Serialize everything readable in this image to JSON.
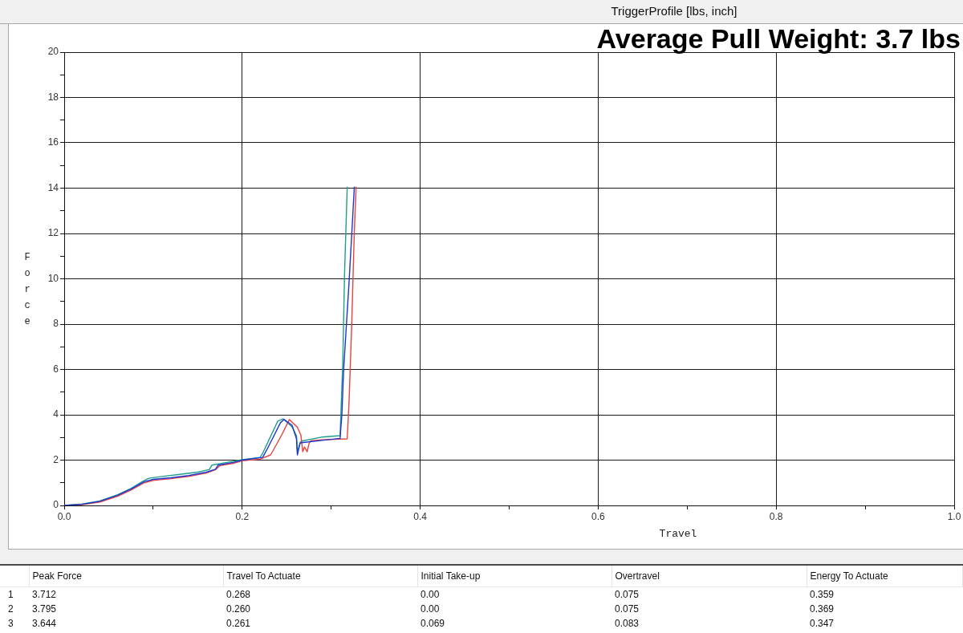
{
  "chart_data": [
    {
      "type": "line",
      "title": "TriggerProfile [lbs, inch]",
      "xlabel": "Travel",
      "ylabel": "Force",
      "annotations": [
        "Average Pull Weight: 3.7 lbs"
      ],
      "xlim": [
        0,
        1
      ],
      "xticks": [
        {
          "value": 0,
          "label": "0.0"
        },
        {
          "value": 0.1,
          "label": null
        },
        0.2,
        {
          "value": 0.3,
          "label": null
        },
        0.4,
        {
          "value": 0.5,
          "label": null
        },
        0.6,
        {
          "value": 0.7,
          "label": null
        },
        0.8,
        {
          "value": 0.9,
          "label": null
        },
        {
          "value": 1,
          "label": "1.0"
        }
      ],
      "ylim": [
        0,
        20
      ],
      "yticks": [
        0,
        {
          "value": 1,
          "label": null
        },
        2,
        {
          "value": 3,
          "label": null
        },
        4,
        {
          "value": 5,
          "label": null
        },
        6,
        {
          "value": 7,
          "label": null
        },
        8,
        {
          "value": 9,
          "label": null
        },
        10,
        {
          "value": 11,
          "label": null
        },
        12,
        {
          "value": 13,
          "label": null
        },
        14,
        {
          "value": 15,
          "label": null
        },
        16,
        {
          "value": 17,
          "label": null
        },
        18,
        {
          "value": 19,
          "label": null
        },
        20
      ],
      "grid": true,
      "series": [
        {
          "color": "#1f35d0",
          "x": [
            0,
            0.02,
            0.04,
            0.06,
            0.075,
            0.09,
            0.1,
            0.12,
            0.14,
            0.16,
            0.17,
            0.173,
            0.19,
            0.2,
            0.223,
            0.228,
            0.243,
            0.247,
            0.256,
            0.261,
            0.262,
            0.265,
            0.292,
            0.31,
            0.312,
            0.314,
            0.317,
            0.32,
            0.323,
            0.326
          ],
          "values": [
            0,
            0.05,
            0.18,
            0.45,
            0.72,
            1.05,
            1.15,
            1.22,
            1.32,
            1.47,
            1.6,
            1.78,
            1.9,
            2.0,
            2.12,
            2.48,
            3.65,
            3.79,
            3.54,
            2.94,
            2.23,
            2.76,
            2.88,
            2.96,
            4.0,
            6.0,
            7.9,
            9.8,
            11.9,
            14.05
          ]
        },
        {
          "color": "#e8423f",
          "x": [
            0,
            0.02,
            0.04,
            0.06,
            0.075,
            0.09,
            0.1,
            0.12,
            0.14,
            0.16,
            0.17,
            0.175,
            0.19,
            0.2,
            0.22,
            0.232,
            0.244,
            0.253,
            0.262,
            0.266,
            0.268,
            0.27,
            0.273,
            0.275,
            0.277,
            0.29,
            0.318,
            0.32,
            0.323,
            0.326,
            0.328
          ],
          "values": [
            0,
            0.03,
            0.15,
            0.4,
            0.68,
            1.0,
            1.1,
            1.18,
            1.28,
            1.43,
            1.58,
            1.76,
            1.86,
            1.97,
            2.04,
            2.23,
            3.08,
            3.79,
            3.45,
            3.1,
            2.37,
            2.58,
            2.37,
            2.72,
            2.85,
            2.9,
            2.94,
            4.5,
            7.9,
            12.1,
            14.05
          ]
        },
        {
          "color": "#1f9e8c",
          "x": [
            0,
            0.02,
            0.04,
            0.06,
            0.075,
            0.088,
            0.095,
            0.11,
            0.13,
            0.15,
            0.163,
            0.166,
            0.18,
            0.2,
            0.22,
            0.223,
            0.24,
            0.246,
            0.256,
            0.261,
            0.262,
            0.266,
            0.29,
            0.31,
            0.313,
            0.315,
            0.318
          ],
          "values": [
            0,
            0.06,
            0.2,
            0.47,
            0.75,
            1.06,
            1.2,
            1.28,
            1.37,
            1.47,
            1.58,
            1.78,
            1.88,
            2.02,
            2.12,
            2.3,
            3.72,
            3.82,
            3.47,
            3.08,
            2.4,
            2.83,
            3.02,
            3.08,
            6.27,
            10.2,
            14.05
          ]
        }
      ]
    },
    {
      "type": "other",
      "categories": [
        "Peak Force",
        "Travel To Actuate",
        "Initial Take-up",
        "Overtravel",
        "Energy To Actuate"
      ],
      "series": [
        {
          "name": "1",
          "values": [
            3.712,
            0.268,
            0,
            0.075,
            0.359
          ],
          "value_labels": [
            "3.712",
            "0.268",
            "0.00",
            "0.075",
            "0.359"
          ]
        },
        {
          "name": "2",
          "values": [
            3.795,
            0.26,
            0,
            0.075,
            0.369
          ],
          "value_labels": [
            "3.795",
            "0.260",
            "0.00",
            "0.075",
            "0.369"
          ]
        },
        {
          "name": "3",
          "values": [
            3.644,
            0.261,
            0.069,
            0.083,
            0.347
          ],
          "value_labels": [
            "3.644",
            "0.261",
            "0.069",
            "0.083",
            "0.347"
          ]
        }
      ]
    }
  ]
}
